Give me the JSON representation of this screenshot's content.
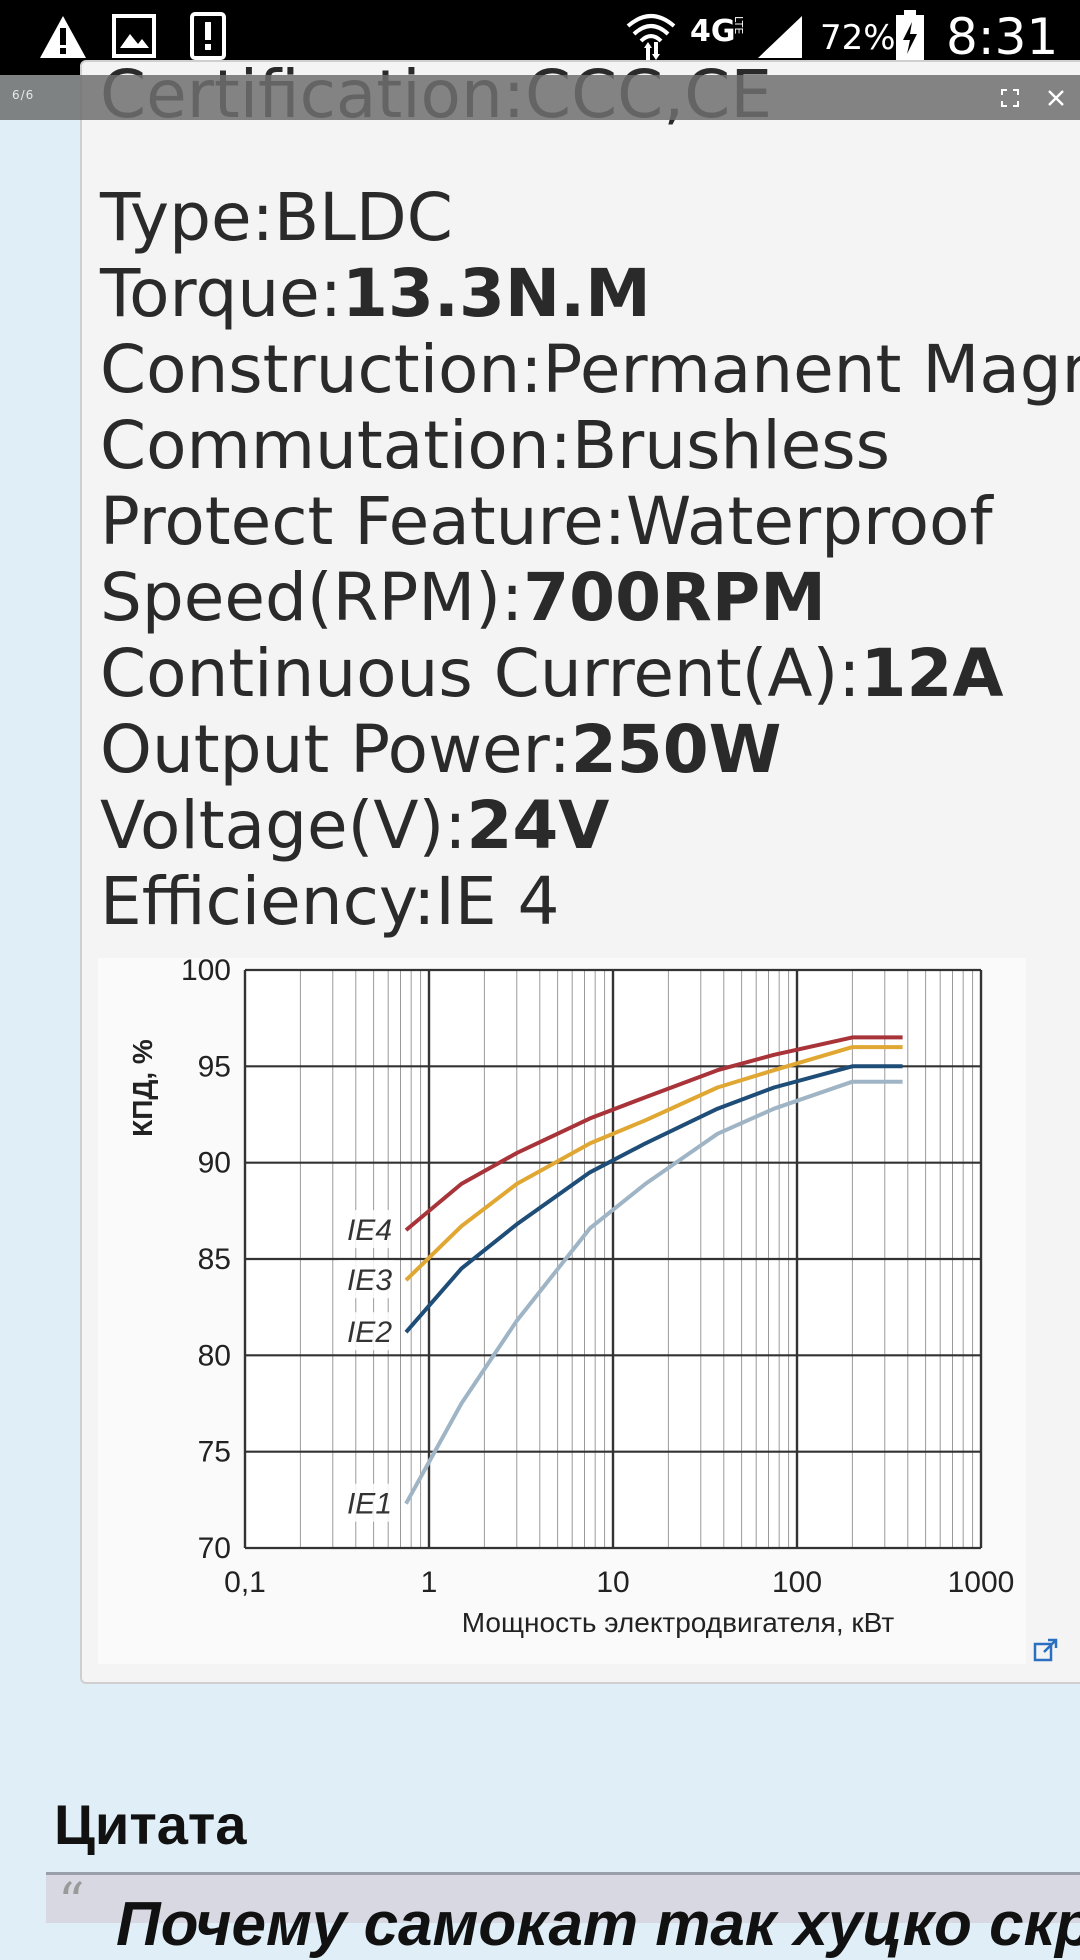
{
  "status_bar": {
    "network": "4G",
    "network_sub": "LTE",
    "battery": "72%",
    "time": "8:31"
  },
  "lightbox": {
    "counter": "6/6"
  },
  "specs": [
    {
      "label": "Certification:",
      "value": "CCC,CE",
      "bold": false
    },
    {
      "label": "Type:",
      "value": "BLDC",
      "bold": false
    },
    {
      "label": "Torque:",
      "value": "13.3N.M",
      "bold": true
    },
    {
      "label": "Construction:",
      "value": "Permanent Magnet",
      "bold": false
    },
    {
      "label": "Commutation:",
      "value": "Brushless",
      "bold": false
    },
    {
      "label": "Protect Feature:",
      "value": "Waterproof",
      "bold": false
    },
    {
      "label": "Speed(RPM):",
      "value": "700RPM",
      "bold": true
    },
    {
      "label": "Continuous Current(A):",
      "value": "12A",
      "bold": true
    },
    {
      "label": "Output Power:",
      "value": "250W",
      "bold": true
    },
    {
      "label": "Voltage(V):",
      "value": "24V",
      "bold": true
    },
    {
      "label": "Efficiency:",
      "value": "IE 4",
      "bold": false
    }
  ],
  "chart_data": {
    "type": "line",
    "xlabel": "Мощность электродвигателя, кВт",
    "ylabel": "КПД, %",
    "xscale": "log",
    "xlim": [
      0.1,
      1000
    ],
    "ylim": [
      70,
      100
    ],
    "xticks": [
      "0,1",
      "1",
      "10",
      "100",
      "1000"
    ],
    "yticks": [
      "100",
      "95",
      "90",
      "85",
      "80",
      "75",
      "70"
    ],
    "grid": true,
    "series": [
      {
        "name": "IE4",
        "color": "#a8343a",
        "x": [
          0.75,
          1.5,
          3,
          7.5,
          15,
          37,
          75,
          200,
          375
        ],
        "y": [
          86.5,
          88.9,
          90.5,
          92.3,
          93.4,
          94.8,
          95.6,
          96.5,
          96.5
        ]
      },
      {
        "name": "IE3",
        "color": "#e0a732",
        "x": [
          0.75,
          1.5,
          3,
          7.5,
          15,
          37,
          75,
          200,
          375
        ],
        "y": [
          83.9,
          86.7,
          88.9,
          91.0,
          92.2,
          93.9,
          94.8,
          96.0,
          96.0
        ]
      },
      {
        "name": "IE2",
        "color": "#1e4d78",
        "x": [
          0.75,
          1.5,
          3,
          7.5,
          15,
          37,
          75,
          200,
          375
        ],
        "y": [
          81.2,
          84.5,
          86.8,
          89.5,
          91.0,
          92.8,
          93.9,
          95.0,
          95.0
        ]
      },
      {
        "name": "IE1",
        "color": "#9fb5c5",
        "x": [
          0.75,
          1.5,
          3,
          7.5,
          15,
          37,
          75,
          200,
          375
        ],
        "y": [
          72.3,
          77.5,
          81.8,
          86.6,
          88.9,
          91.5,
          92.8,
          94.2,
          94.2
        ]
      }
    ]
  },
  "quote": {
    "heading": "Цитата",
    "mark": "“",
    "text": "Почему самокат так хуцко скр"
  },
  "icons": {
    "warning": "warning-icon",
    "image": "image-icon",
    "alert": "alert-icon",
    "wifi": "wifi-icon",
    "signal": "signal-icon",
    "battery": "battery-charging-icon",
    "fullscreen": "fullscreen-icon",
    "close": "close-icon",
    "expand": "external-link-icon"
  }
}
